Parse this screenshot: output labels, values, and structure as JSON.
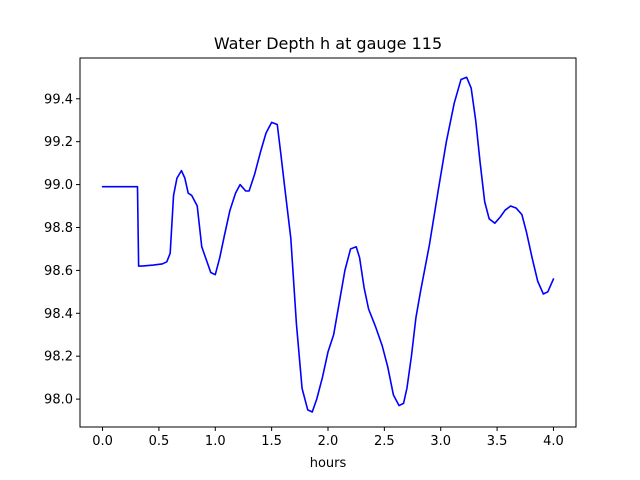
{
  "chart_data": {
    "type": "line",
    "title": "Water Depth h at gauge 115",
    "xlabel": "hours",
    "ylabel": "",
    "xlim": [
      -0.2,
      4.2
    ],
    "ylim": [
      97.87,
      99.59
    ],
    "xticks": [
      0.0,
      0.5,
      1.0,
      1.5,
      2.0,
      2.5,
      3.0,
      3.5,
      4.0
    ],
    "xtick_labels": [
      "0.0",
      "0.5",
      "1.0",
      "1.5",
      "2.0",
      "2.5",
      "3.0",
      "3.5",
      "4.0"
    ],
    "yticks": [
      98.0,
      98.2,
      98.4,
      98.6,
      98.8,
      99.0,
      99.2,
      99.4
    ],
    "ytick_labels": [
      "98.0",
      "98.2",
      "98.4",
      "98.6",
      "98.8",
      "99.0",
      "99.2",
      "99.4"
    ],
    "grid": false,
    "line_color": "#0000ff",
    "series": [
      {
        "x": [
          0.0,
          0.1,
          0.2,
          0.3,
          0.31,
          0.32,
          0.35,
          0.45,
          0.53,
          0.57,
          0.6,
          0.63,
          0.66,
          0.7,
          0.73,
          0.76,
          0.79,
          0.84,
          0.88,
          0.92,
          0.96,
          1.0,
          1.04,
          1.08,
          1.13,
          1.18,
          1.22,
          1.27,
          1.3,
          1.35,
          1.4,
          1.45,
          1.5,
          1.55,
          1.58,
          1.62,
          1.67,
          1.72,
          1.77,
          1.82,
          1.86,
          1.9,
          1.95,
          2.0,
          2.05,
          2.1,
          2.15,
          2.2,
          2.25,
          2.28,
          2.32,
          2.36,
          2.42,
          2.48,
          2.53,
          2.58,
          2.63,
          2.67,
          2.7,
          2.74,
          2.78,
          2.82,
          2.9,
          2.98,
          3.05,
          3.12,
          3.18,
          3.23,
          3.27,
          3.31,
          3.35,
          3.39,
          3.43,
          3.48,
          3.53,
          3.57,
          3.62,
          3.67,
          3.72,
          3.76,
          3.81,
          3.86,
          3.91,
          3.95,
          4.0
        ],
        "y": [
          98.99,
          98.99,
          98.99,
          98.99,
          98.99,
          98.62,
          98.62,
          98.625,
          98.63,
          98.64,
          98.68,
          98.95,
          99.03,
          99.065,
          99.03,
          98.96,
          98.95,
          98.9,
          98.71,
          98.65,
          98.59,
          98.58,
          98.66,
          98.76,
          98.88,
          98.96,
          99.0,
          98.97,
          98.97,
          99.05,
          99.15,
          99.24,
          99.29,
          99.28,
          99.15,
          98.97,
          98.75,
          98.35,
          98.05,
          97.95,
          97.94,
          98.0,
          98.1,
          98.22,
          98.3,
          98.45,
          98.6,
          98.7,
          98.71,
          98.66,
          98.52,
          98.42,
          98.34,
          98.25,
          98.15,
          98.02,
          97.97,
          97.98,
          98.05,
          98.2,
          98.38,
          98.5,
          98.72,
          98.98,
          99.2,
          99.38,
          99.49,
          99.5,
          99.45,
          99.3,
          99.1,
          98.92,
          98.84,
          98.82,
          98.85,
          98.88,
          98.9,
          98.89,
          98.86,
          98.78,
          98.66,
          98.55,
          98.49,
          98.5,
          98.56
        ]
      }
    ]
  }
}
